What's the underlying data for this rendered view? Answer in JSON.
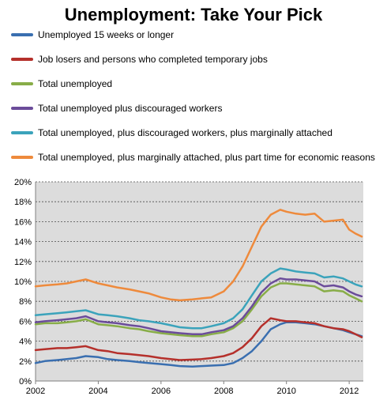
{
  "chart_data": {
    "type": "line",
    "title": "Unemployment: Take Your Pick",
    "xlabel": "",
    "ylabel": "",
    "xlim": [
      2002,
      2012.45
    ],
    "ylim": [
      0,
      20
    ],
    "x_ticks": [
      "2002",
      "2004",
      "2006",
      "2008",
      "2010",
      "2012"
    ],
    "y_ticks": [
      "0%",
      "2%",
      "4%",
      "6%",
      "8%",
      "10%",
      "12%",
      "14%",
      "16%",
      "18%",
      "20%"
    ],
    "grid": true,
    "legend_position": "top",
    "series": [
      {
        "name": "Unemployed 15 weeks or longer",
        "color": "#3a6fb0",
        "points": [
          [
            2002.0,
            1.8
          ],
          [
            2002.3,
            2.0
          ],
          [
            2002.7,
            2.1
          ],
          [
            2003.0,
            2.2
          ],
          [
            2003.3,
            2.3
          ],
          [
            2003.6,
            2.5
          ],
          [
            2004.0,
            2.4
          ],
          [
            2004.3,
            2.2
          ],
          [
            2004.6,
            2.1
          ],
          [
            2005.0,
            2.0
          ],
          [
            2005.3,
            1.9
          ],
          [
            2005.6,
            1.8
          ],
          [
            2006.0,
            1.7
          ],
          [
            2006.3,
            1.6
          ],
          [
            2006.6,
            1.5
          ],
          [
            2007.0,
            1.45
          ],
          [
            2007.3,
            1.5
          ],
          [
            2007.6,
            1.55
          ],
          [
            2008.0,
            1.6
          ],
          [
            2008.3,
            1.8
          ],
          [
            2008.6,
            2.3
          ],
          [
            2008.9,
            3.0
          ],
          [
            2009.2,
            4.0
          ],
          [
            2009.5,
            5.2
          ],
          [
            2009.8,
            5.7
          ],
          [
            2010.0,
            5.9
          ],
          [
            2010.3,
            5.9
          ],
          [
            2010.6,
            5.8
          ],
          [
            2010.9,
            5.7
          ],
          [
            2011.2,
            5.5
          ],
          [
            2011.5,
            5.3
          ],
          [
            2011.8,
            5.1
          ],
          [
            2012.0,
            4.9
          ],
          [
            2012.2,
            4.7
          ],
          [
            2012.4,
            4.5
          ]
        ]
      },
      {
        "name": "Job losers and persons who completed temporary jobs",
        "color": "#b5302b",
        "points": [
          [
            2002.0,
            3.1
          ],
          [
            2002.3,
            3.2
          ],
          [
            2002.7,
            3.3
          ],
          [
            2003.0,
            3.3
          ],
          [
            2003.3,
            3.4
          ],
          [
            2003.6,
            3.5
          ],
          [
            2004.0,
            3.1
          ],
          [
            2004.3,
            3.0
          ],
          [
            2004.6,
            2.8
          ],
          [
            2005.0,
            2.7
          ],
          [
            2005.3,
            2.6
          ],
          [
            2005.6,
            2.5
          ],
          [
            2006.0,
            2.3
          ],
          [
            2006.3,
            2.2
          ],
          [
            2006.6,
            2.1
          ],
          [
            2007.0,
            2.15
          ],
          [
            2007.3,
            2.2
          ],
          [
            2007.6,
            2.3
          ],
          [
            2008.0,
            2.5
          ],
          [
            2008.3,
            2.8
          ],
          [
            2008.6,
            3.4
          ],
          [
            2008.9,
            4.3
          ],
          [
            2009.2,
            5.5
          ],
          [
            2009.5,
            6.3
          ],
          [
            2009.8,
            6.1
          ],
          [
            2010.0,
            6.0
          ],
          [
            2010.3,
            6.0
          ],
          [
            2010.6,
            5.9
          ],
          [
            2010.9,
            5.8
          ],
          [
            2011.2,
            5.5
          ],
          [
            2011.5,
            5.3
          ],
          [
            2011.8,
            5.2
          ],
          [
            2012.0,
            5.0
          ],
          [
            2012.2,
            4.7
          ],
          [
            2012.4,
            4.4
          ]
        ]
      },
      {
        "name": "Total unemployed",
        "color": "#88ad48",
        "points": [
          [
            2002.0,
            5.7
          ],
          [
            2002.3,
            5.8
          ],
          [
            2002.7,
            5.8
          ],
          [
            2003.0,
            5.9
          ],
          [
            2003.3,
            6.0
          ],
          [
            2003.6,
            6.2
          ],
          [
            2004.0,
            5.7
          ],
          [
            2004.3,
            5.6
          ],
          [
            2004.6,
            5.5
          ],
          [
            2005.0,
            5.3
          ],
          [
            2005.3,
            5.2
          ],
          [
            2005.6,
            5.0
          ],
          [
            2006.0,
            4.8
          ],
          [
            2006.3,
            4.7
          ],
          [
            2006.6,
            4.6
          ],
          [
            2007.0,
            4.5
          ],
          [
            2007.3,
            4.5
          ],
          [
            2007.6,
            4.7
          ],
          [
            2008.0,
            4.9
          ],
          [
            2008.3,
            5.3
          ],
          [
            2008.6,
            6.0
          ],
          [
            2008.9,
            7.2
          ],
          [
            2009.2,
            8.5
          ],
          [
            2009.5,
            9.4
          ],
          [
            2009.8,
            9.8
          ],
          [
            2010.0,
            9.8
          ],
          [
            2010.3,
            9.7
          ],
          [
            2010.6,
            9.6
          ],
          [
            2010.9,
            9.5
          ],
          [
            2011.2,
            9.0
          ],
          [
            2011.5,
            9.1
          ],
          [
            2011.8,
            9.0
          ],
          [
            2012.0,
            8.6
          ],
          [
            2012.2,
            8.3
          ],
          [
            2012.4,
            8.0
          ]
        ]
      },
      {
        "name": "Total unemployed plus discouraged workers",
        "color": "#6b4c9a",
        "points": [
          [
            2002.0,
            5.9
          ],
          [
            2002.3,
            6.0
          ],
          [
            2002.7,
            6.1
          ],
          [
            2003.0,
            6.2
          ],
          [
            2003.3,
            6.3
          ],
          [
            2003.6,
            6.5
          ],
          [
            2004.0,
            6.0
          ],
          [
            2004.3,
            5.9
          ],
          [
            2004.6,
            5.8
          ],
          [
            2005.0,
            5.6
          ],
          [
            2005.3,
            5.5
          ],
          [
            2005.6,
            5.3
          ],
          [
            2006.0,
            5.0
          ],
          [
            2006.3,
            4.9
          ],
          [
            2006.6,
            4.8
          ],
          [
            2007.0,
            4.7
          ],
          [
            2007.3,
            4.7
          ],
          [
            2007.6,
            4.9
          ],
          [
            2008.0,
            5.1
          ],
          [
            2008.3,
            5.5
          ],
          [
            2008.6,
            6.3
          ],
          [
            2008.9,
            7.5
          ],
          [
            2009.2,
            8.9
          ],
          [
            2009.5,
            9.8
          ],
          [
            2009.8,
            10.3
          ],
          [
            2010.0,
            10.2
          ],
          [
            2010.3,
            10.2
          ],
          [
            2010.6,
            10.1
          ],
          [
            2010.9,
            10.0
          ],
          [
            2011.2,
            9.5
          ],
          [
            2011.5,
            9.6
          ],
          [
            2011.8,
            9.4
          ],
          [
            2012.0,
            9.0
          ],
          [
            2012.2,
            8.7
          ],
          [
            2012.4,
            8.5
          ]
        ]
      },
      {
        "name": "Total unemployed, plus discouraged workers, plus marginally attached",
        "color": "#3ba3bb",
        "points": [
          [
            2002.0,
            6.6
          ],
          [
            2002.3,
            6.7
          ],
          [
            2002.7,
            6.8
          ],
          [
            2003.0,
            6.9
          ],
          [
            2003.3,
            7.0
          ],
          [
            2003.6,
            7.1
          ],
          [
            2004.0,
            6.7
          ],
          [
            2004.3,
            6.6
          ],
          [
            2004.6,
            6.5
          ],
          [
            2005.0,
            6.3
          ],
          [
            2005.3,
            6.1
          ],
          [
            2005.6,
            6.0
          ],
          [
            2006.0,
            5.8
          ],
          [
            2006.3,
            5.6
          ],
          [
            2006.6,
            5.4
          ],
          [
            2007.0,
            5.3
          ],
          [
            2007.3,
            5.3
          ],
          [
            2007.6,
            5.5
          ],
          [
            2008.0,
            5.8
          ],
          [
            2008.3,
            6.3
          ],
          [
            2008.6,
            7.2
          ],
          [
            2008.9,
            8.6
          ],
          [
            2009.2,
            10.0
          ],
          [
            2009.5,
            10.8
          ],
          [
            2009.8,
            11.3
          ],
          [
            2010.0,
            11.2
          ],
          [
            2010.3,
            11.0
          ],
          [
            2010.6,
            10.9
          ],
          [
            2010.9,
            10.8
          ],
          [
            2011.2,
            10.4
          ],
          [
            2011.5,
            10.5
          ],
          [
            2011.8,
            10.3
          ],
          [
            2012.0,
            10.0
          ],
          [
            2012.2,
            9.7
          ],
          [
            2012.4,
            9.5
          ]
        ]
      },
      {
        "name": "Total unemployed, plus  marginally attached, plus  part time for economic reasons",
        "color": "#ee8a3c",
        "points": [
          [
            2002.0,
            9.5
          ],
          [
            2002.3,
            9.6
          ],
          [
            2002.7,
            9.7
          ],
          [
            2003.0,
            9.8
          ],
          [
            2003.3,
            10.0
          ],
          [
            2003.6,
            10.2
          ],
          [
            2004.0,
            9.8
          ],
          [
            2004.3,
            9.6
          ],
          [
            2004.6,
            9.4
          ],
          [
            2005.0,
            9.2
          ],
          [
            2005.3,
            9.0
          ],
          [
            2005.6,
            8.8
          ],
          [
            2006.0,
            8.4
          ],
          [
            2006.3,
            8.2
          ],
          [
            2006.6,
            8.1
          ],
          [
            2007.0,
            8.2
          ],
          [
            2007.3,
            8.3
          ],
          [
            2007.6,
            8.4
          ],
          [
            2008.0,
            9.0
          ],
          [
            2008.3,
            10.0
          ],
          [
            2008.6,
            11.5
          ],
          [
            2008.9,
            13.5
          ],
          [
            2009.2,
            15.5
          ],
          [
            2009.5,
            16.7
          ],
          [
            2009.8,
            17.2
          ],
          [
            2010.0,
            17.0
          ],
          [
            2010.3,
            16.8
          ],
          [
            2010.6,
            16.7
          ],
          [
            2010.9,
            16.8
          ],
          [
            2011.2,
            16.0
          ],
          [
            2011.5,
            16.1
          ],
          [
            2011.8,
            16.2
          ],
          [
            2012.0,
            15.2
          ],
          [
            2012.2,
            14.8
          ],
          [
            2012.4,
            14.5
          ]
        ]
      }
    ]
  }
}
